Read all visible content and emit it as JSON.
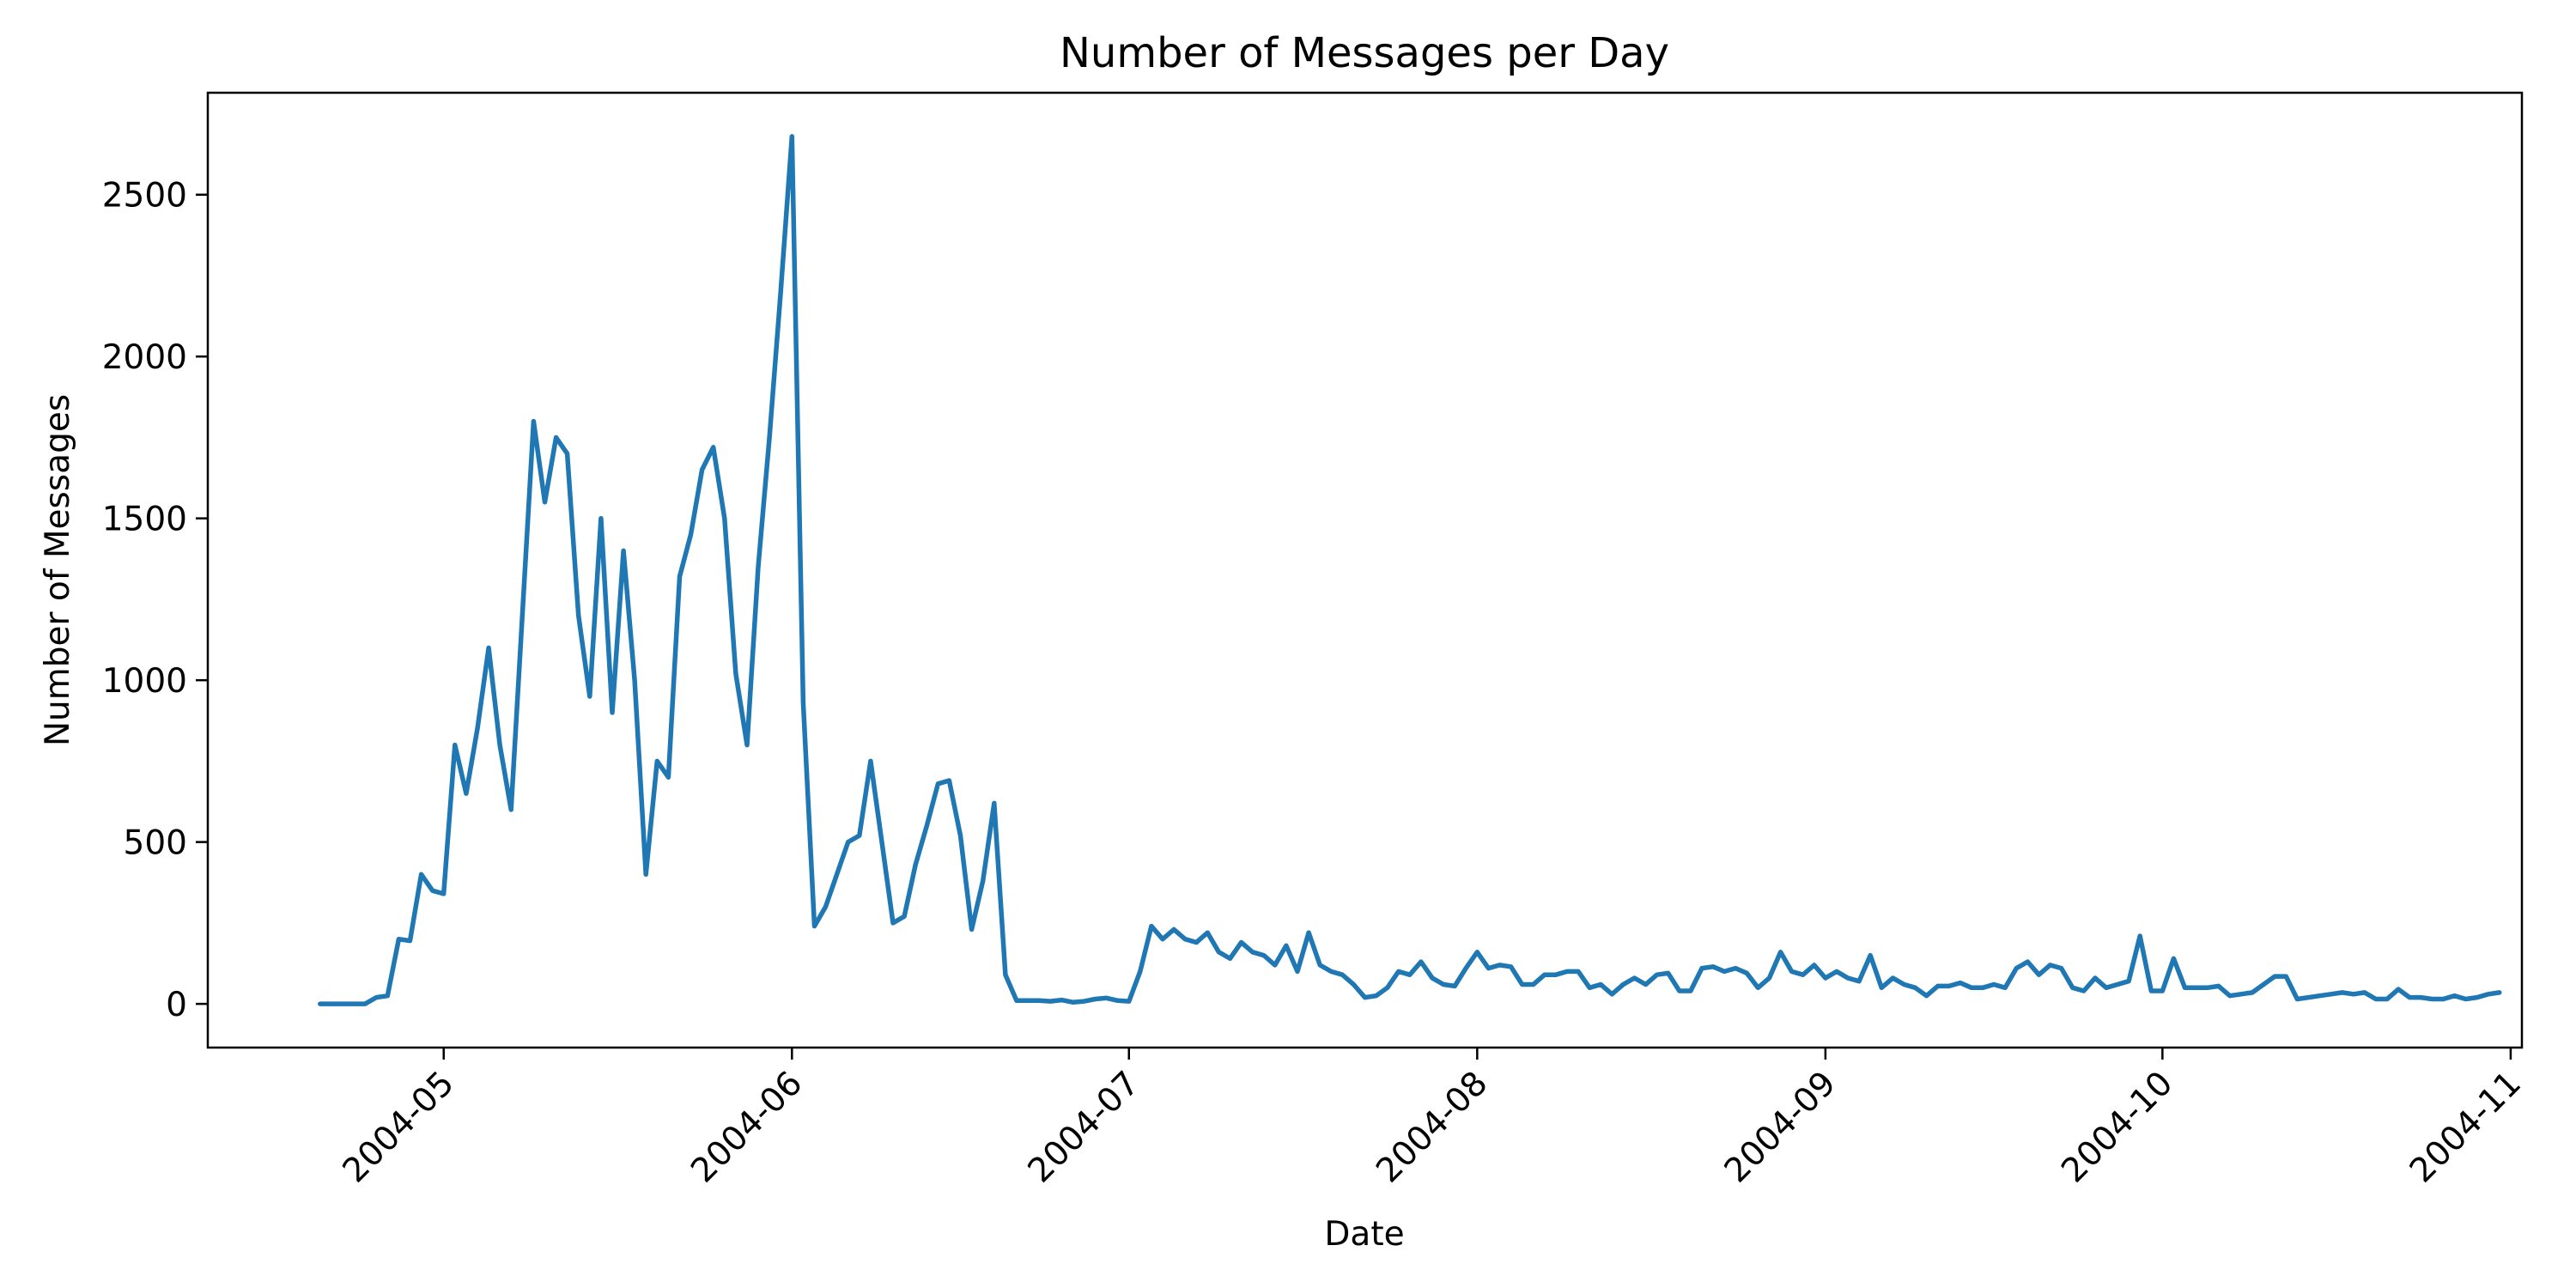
{
  "chart_data": {
    "type": "line",
    "title": "Number of Messages per Day",
    "xlabel": "Date",
    "ylabel": "Number of Messages",
    "x_range": [
      "2004-04-10",
      "2004-11-02"
    ],
    "ylim": [
      -135,
      2815
    ],
    "grid": false,
    "x_ticks": [
      {
        "date": "2004-05-01",
        "label": "2004-05"
      },
      {
        "date": "2004-06-01",
        "label": "2004-06"
      },
      {
        "date": "2004-07-01",
        "label": "2004-07"
      },
      {
        "date": "2004-08-01",
        "label": "2004-08"
      },
      {
        "date": "2004-09-01",
        "label": "2004-09"
      },
      {
        "date": "2004-10-01",
        "label": "2004-10"
      },
      {
        "date": "2004-11-01",
        "label": "2004-11"
      }
    ],
    "y_ticks": [
      {
        "value": 0,
        "label": "0"
      },
      {
        "value": 500,
        "label": "500"
      },
      {
        "value": 1000,
        "label": "1000"
      },
      {
        "value": 1500,
        "label": "1500"
      },
      {
        "value": 2000,
        "label": "2000"
      },
      {
        "value": 2500,
        "label": "2500"
      }
    ],
    "series": [
      {
        "name": "messages",
        "color": "#1f77b4",
        "start_date": "2004-04-20",
        "values": [
          0,
          0,
          0,
          0,
          0,
          20,
          25,
          200,
          195,
          400,
          350,
          340,
          800,
          650,
          850,
          1100,
          800,
          600,
          1200,
          1800,
          1550,
          1750,
          1700,
          1200,
          950,
          1500,
          900,
          1400,
          1000,
          400,
          750,
          700,
          1320,
          1450,
          1650,
          1720,
          1500,
          1020,
          800,
          1350,
          1750,
          2200,
          2680,
          930,
          240,
          300,
          400,
          500,
          520,
          750,
          500,
          250,
          270,
          430,
          550,
          680,
          690,
          520,
          230,
          380,
          620,
          90,
          10,
          10,
          10,
          8,
          12,
          5,
          8,
          15,
          18,
          10,
          8,
          100,
          240,
          200,
          230,
          200,
          190,
          220,
          160,
          140,
          190,
          160,
          150,
          120,
          180,
          100,
          220,
          120,
          100,
          90,
          60,
          20,
          25,
          50,
          100,
          90,
          130,
          80,
          60,
          55,
          110,
          160,
          110,
          120,
          115,
          60,
          60,
          90,
          90,
          100,
          100,
          50,
          60,
          30,
          60,
          80,
          60,
          90,
          95,
          40,
          40,
          110,
          115,
          100,
          110,
          95,
          50,
          80,
          160,
          100,
          90,
          120,
          80,
          100,
          80,
          70,
          150,
          50,
          80,
          60,
          50,
          25,
          55,
          55,
          65,
          50,
          50,
          60,
          50,
          110,
          130,
          90,
          120,
          110,
          50,
          40,
          80,
          50,
          60,
          70,
          210,
          40,
          40,
          140,
          50,
          50,
          50,
          55,
          25,
          30,
          35,
          60,
          85,
          85,
          15,
          20,
          25,
          30,
          35,
          30,
          35,
          15,
          15,
          45,
          20,
          20,
          15,
          15,
          25,
          15,
          20,
          30,
          35
        ]
      }
    ]
  }
}
